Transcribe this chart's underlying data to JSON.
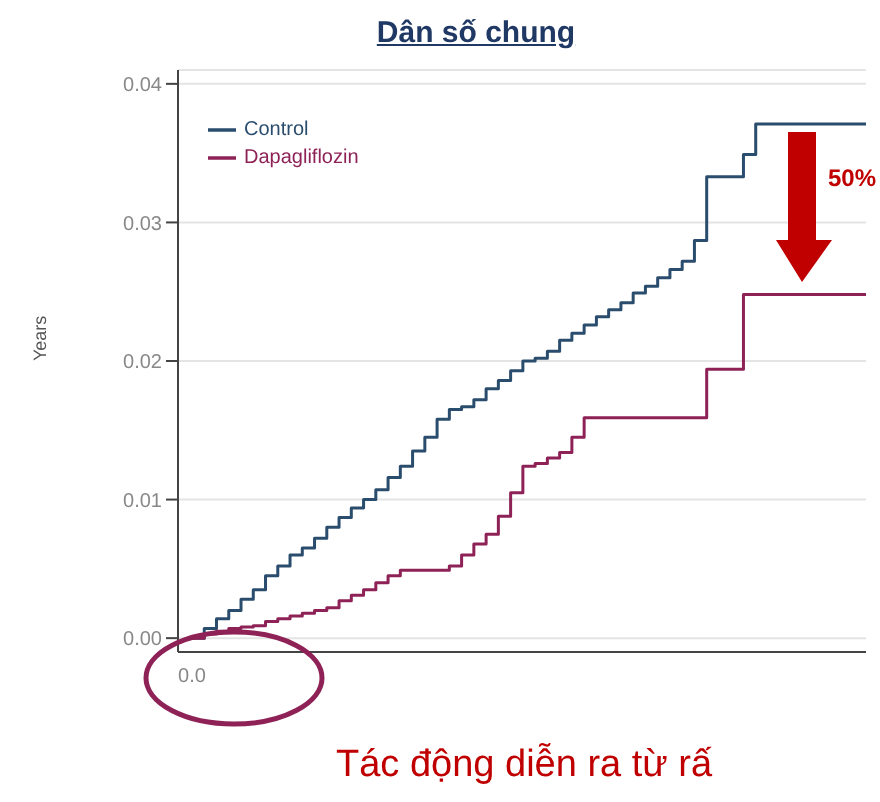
{
  "chart_data": {
    "type": "step",
    "title": "Dân số chung",
    "ylabel": "Years",
    "categories": [
      "0.0",
      null,
      null,
      null,
      null,
      null,
      null,
      null,
      null,
      null,
      null,
      null,
      null,
      null,
      null,
      null,
      null,
      null,
      null,
      null,
      null,
      null,
      null,
      null,
      null,
      null,
      null,
      null,
      null,
      null,
      null,
      null,
      null,
      null,
      null,
      null,
      null,
      null,
      null,
      null,
      null,
      null,
      null,
      null,
      null,
      null,
      null,
      null,
      null,
      null,
      null,
      null,
      null,
      null,
      null,
      null
    ],
    "series": [
      {
        "name": "Control",
        "color": "#2a4d6e",
        "values": [
          0,
          0.0007,
          0.0014,
          0.002,
          0.0028,
          0.0035,
          0.0045,
          0.0052,
          0.006,
          0.0065,
          0.0072,
          0.008,
          0.0087,
          0.0094,
          0.01,
          0.0107,
          0.0116,
          0.0124,
          0.0135,
          0.0145,
          0.0158,
          0.0165,
          0.0167,
          0.0172,
          0.018,
          0.0186,
          0.0193,
          0.02,
          0.0202,
          0.0207,
          0.0215,
          0.022,
          0.0226,
          0.0232,
          0.0237,
          0.0242,
          0.0249,
          0.0254,
          0.026,
          0.0266,
          0.0272,
          0.0287,
          0.0333,
          0.0333,
          0.0333,
          0.0349,
          0.0371,
          0.0371,
          0.0371,
          0.0371,
          0.0371,
          0.0371,
          0.0371,
          0.0371,
          0.0371,
          0.0371
        ]
      },
      {
        "name": "Dapagliflozin",
        "color": "#8e2256",
        "values": [
          0,
          0.0003,
          0.0005,
          0.0007,
          0.0008,
          0.0009,
          0.0012,
          0.0014,
          0.0016,
          0.0018,
          0.002,
          0.0022,
          0.0027,
          0.0031,
          0.0035,
          0.004,
          0.0045,
          0.0049,
          0.0049,
          0.0049,
          0.0049,
          0.0052,
          0.006,
          0.0068,
          0.0075,
          0.0088,
          0.0105,
          0.0124,
          0.0126,
          0.013,
          0.0134,
          0.0145,
          0.0159,
          0.0159,
          0.0159,
          0.0159,
          0.0159,
          0.0159,
          0.0159,
          0.0159,
          0.0159,
          0.0159,
          0.0194,
          0.0194,
          0.0194,
          0.0248,
          0.0248,
          0.0248,
          0.0248,
          0.0248,
          0.0248,
          0.0248,
          0.0248,
          0.0248,
          0.0248,
          0.0248
        ]
      }
    ],
    "ylim": [
      -0.001,
      0.041
    ],
    "yticks": [
      {
        "value": 0,
        "label": "0.00"
      },
      0.01,
      0.02,
      0.03,
      0.04
    ],
    "grid": "y",
    "legend": "top left",
    "marker": "none",
    "line_style": "solid",
    "annotations": [
      "50%",
      "Tác động diễn ra từ rấ"
    ]
  }
}
